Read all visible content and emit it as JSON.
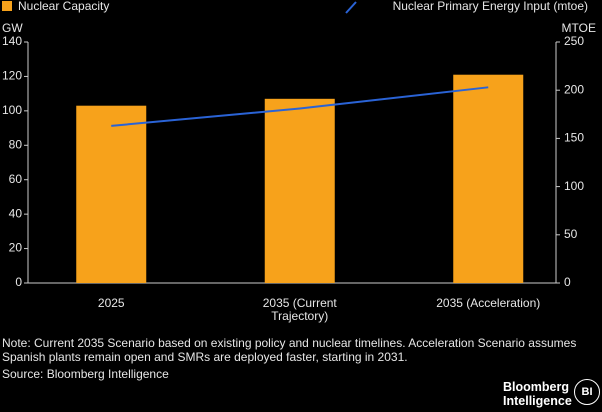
{
  "chart_data": {
    "type": "bar",
    "ylabel": "GW",
    "y2label": "MTOE",
    "categories": [
      "2025",
      "2035 (Current Trajectory)",
      "2035 (Acceleration)"
    ],
    "series": [
      {
        "name": "Nuclear Capacity",
        "type": "bar",
        "color": "#f7a21b",
        "values": [
          103,
          107,
          121
        ]
      },
      {
        "name": "Nuclear Primary Energy Input (mtoe)",
        "type": "line",
        "axis": "y2",
        "color": "#2a63d6",
        "values": [
          163,
          181,
          203
        ]
      }
    ],
    "ylim": [
      0,
      140
    ],
    "yticks": [
      0,
      20,
      40,
      60,
      80,
      100,
      120,
      140
    ],
    "y2lim": [
      0,
      250
    ],
    "y2ticks": [
      0,
      50,
      100,
      150,
      200,
      250
    ]
  },
  "note": [
    "Note: Current 2035 Scenario based on existing policy and nuclear timelines. Acceleration Scenario assumes",
    "Spanish plants remain open and SMRs are deployed faster, starting in 2031."
  ],
  "source": "Source: Bloomberg Intelligence",
  "logo": {
    "line1": "Bloomberg",
    "line2": "Intelligence",
    "badge": "BI"
  }
}
